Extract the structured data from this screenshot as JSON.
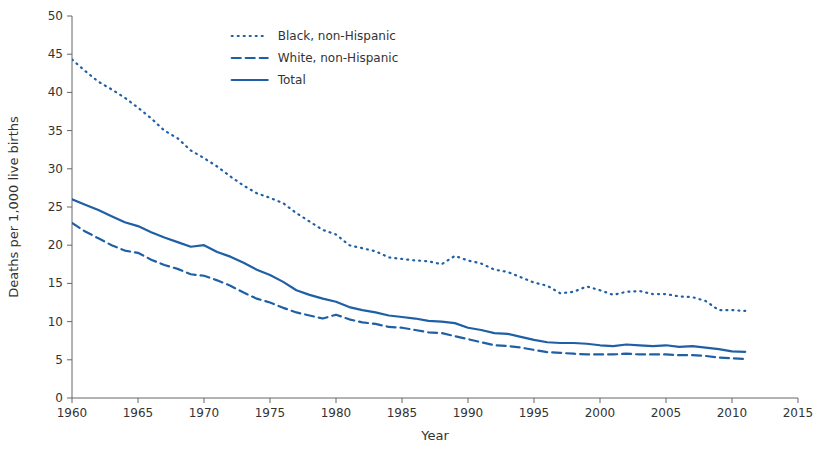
{
  "chart_data": {
    "type": "line",
    "x": [
      1960,
      1961,
      1962,
      1963,
      1964,
      1965,
      1966,
      1967,
      1968,
      1969,
      1970,
      1971,
      1972,
      1973,
      1974,
      1975,
      1976,
      1977,
      1978,
      1979,
      1980,
      1981,
      1982,
      1983,
      1984,
      1985,
      1986,
      1987,
      1988,
      1989,
      1990,
      1991,
      1992,
      1993,
      1994,
      1995,
      1996,
      1997,
      1998,
      1999,
      2000,
      2001,
      2002,
      2003,
      2004,
      2005,
      2006,
      2007,
      2008,
      2009,
      2010,
      2011
    ],
    "series": [
      {
        "name": "Black, non-Hispanic",
        "color": "#1f5fa6",
        "line_style": "dotted",
        "values": [
          44.3,
          42.8,
          41.4,
          40.4,
          39.3,
          38.0,
          36.6,
          35.0,
          34.0,
          32.4,
          31.4,
          30.3,
          29.0,
          27.8,
          26.8,
          26.2,
          25.5,
          24.2,
          23.1,
          22.0,
          21.4,
          20.0,
          19.6,
          19.2,
          18.4,
          18.2,
          18.0,
          17.9,
          17.5,
          18.6,
          18.0,
          17.6,
          16.8,
          16.5,
          15.8,
          15.1,
          14.7,
          13.7,
          13.9,
          14.6,
          14.1,
          13.5,
          13.9,
          14.0,
          13.6,
          13.6,
          13.3,
          13.2,
          12.7,
          11.5,
          11.5,
          11.4
        ]
      },
      {
        "name": "White, non-Hispanic",
        "color": "#1f5fa6",
        "line_style": "dashed",
        "values": [
          22.9,
          21.8,
          20.9,
          20.0,
          19.3,
          19.0,
          18.1,
          17.4,
          16.9,
          16.2,
          16.0,
          15.4,
          14.7,
          13.8,
          13.0,
          12.5,
          11.8,
          11.2,
          10.8,
          10.4,
          10.9,
          10.3,
          9.9,
          9.7,
          9.3,
          9.2,
          8.9,
          8.6,
          8.5,
          8.1,
          7.7,
          7.3,
          6.9,
          6.8,
          6.6,
          6.3,
          6.0,
          5.9,
          5.8,
          5.7,
          5.7,
          5.7,
          5.8,
          5.7,
          5.7,
          5.7,
          5.6,
          5.6,
          5.5,
          5.3,
          5.2,
          5.1
        ]
      },
      {
        "name": "Total",
        "color": "#1f5fa6",
        "line_style": "solid",
        "values": [
          26.0,
          25.3,
          24.6,
          23.8,
          23.0,
          22.5,
          21.7,
          21.0,
          20.4,
          19.8,
          20.0,
          19.1,
          18.5,
          17.7,
          16.8,
          16.1,
          15.2,
          14.1,
          13.5,
          13.0,
          12.6,
          11.9,
          11.5,
          11.2,
          10.8,
          10.6,
          10.4,
          10.1,
          10.0,
          9.8,
          9.2,
          8.9,
          8.5,
          8.4,
          8.0,
          7.6,
          7.3,
          7.2,
          7.2,
          7.1,
          6.9,
          6.8,
          7.0,
          6.9,
          6.8,
          6.9,
          6.7,
          6.8,
          6.6,
          6.4,
          6.1,
          6.05
        ]
      }
    ],
    "xlabel": "Year",
    "ylabel": "Deaths per 1,000 live births",
    "xlim": [
      1960,
      2015
    ],
    "ylim": [
      0,
      50
    ],
    "xticks": [
      1960,
      1965,
      1970,
      1975,
      1980,
      1985,
      1990,
      1995,
      2000,
      2005,
      2010,
      2015
    ],
    "yticks": [
      0,
      5,
      10,
      15,
      20,
      25,
      30,
      35,
      40,
      45,
      50
    ],
    "grid": false,
    "legend": "upper left"
  }
}
